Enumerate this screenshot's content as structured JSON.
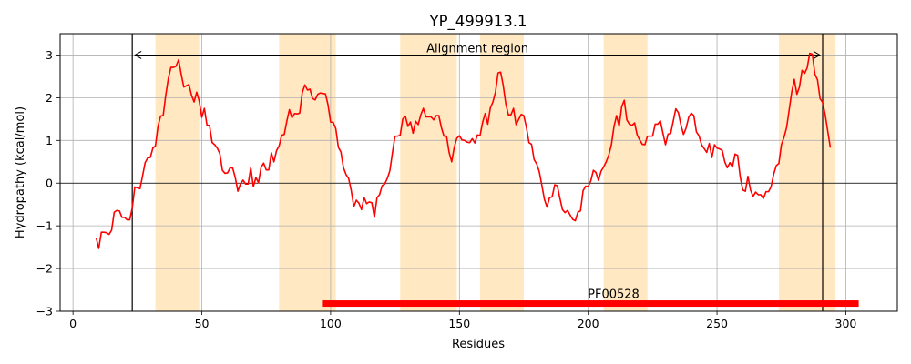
{
  "chart_data": {
    "type": "line",
    "title": "YP_499913.1",
    "xlabel": "Residues",
    "ylabel": "Hydropathy (kcal/mol)",
    "xlim": [
      -5,
      320
    ],
    "ylim": [
      -3,
      3.5
    ],
    "xticks": [
      0,
      50,
      100,
      150,
      200,
      250,
      300
    ],
    "yticks": [
      -3,
      -2,
      -1,
      0,
      1,
      2,
      3
    ],
    "x_tick_labels": [
      "0",
      "50",
      "100",
      "150",
      "200",
      "250",
      "300"
    ],
    "y_tick_labels": [
      "−3",
      "−2",
      "−1",
      "0",
      "1",
      "2",
      "3"
    ],
    "grid": true,
    "series": [
      {
        "color": "#ff0000",
        "x": [
          9,
          10,
          11,
          12,
          13,
          14,
          15,
          16,
          17,
          18,
          19,
          20,
          21,
          22,
          23,
          24,
          25,
          26,
          27,
          28,
          29,
          30,
          31,
          32,
          33,
          34,
          35,
          36,
          37,
          38,
          39,
          40,
          41,
          42,
          43,
          44,
          45,
          46,
          47,
          48,
          49,
          50,
          51,
          52,
          53,
          54,
          55,
          56,
          57,
          58,
          59,
          60,
          61,
          62,
          63,
          64,
          65,
          66,
          67,
          68,
          69,
          70,
          71,
          72,
          73,
          74,
          75,
          76,
          77,
          78,
          79,
          80,
          81,
          82,
          83,
          84,
          85,
          86,
          87,
          88,
          89,
          90,
          91,
          92,
          93,
          94,
          95,
          96,
          97,
          98,
          99,
          100,
          101,
          102,
          103,
          104,
          105,
          106,
          107,
          108,
          109,
          110,
          111,
          112,
          113,
          114,
          115,
          116,
          117,
          118,
          119,
          120,
          121,
          122,
          123,
          124,
          125,
          126,
          127,
          128,
          129,
          130,
          131,
          132,
          133,
          134,
          135,
          136,
          137,
          138,
          139,
          140,
          141,
          142,
          143,
          144,
          145,
          146,
          147,
          148,
          149,
          150,
          151,
          152,
          153,
          154,
          155,
          156,
          157,
          158,
          159,
          160,
          161,
          162,
          163,
          164,
          165,
          166,
          167,
          168,
          169,
          170,
          171,
          172,
          173,
          174,
          175,
          176,
          177,
          178,
          179,
          180,
          181,
          182,
          183,
          184,
          185,
          186,
          187,
          188,
          189,
          190,
          191,
          192,
          193,
          194,
          195,
          196,
          197,
          198,
          199,
          200,
          201,
          202,
          203,
          204,
          205,
          206,
          207,
          208,
          209,
          210,
          211,
          212,
          213,
          214,
          215,
          216,
          217,
          218,
          219,
          220,
          221,
          222,
          223,
          224,
          225,
          226,
          227,
          228,
          229,
          230,
          231,
          232,
          233,
          234,
          235,
          236,
          237,
          238,
          239,
          240,
          241,
          242,
          243,
          244,
          245,
          246,
          247,
          248,
          249,
          250,
          251,
          252,
          253,
          254,
          255,
          256,
          257,
          258,
          259,
          260,
          261,
          262,
          263,
          264,
          265,
          266,
          267,
          268,
          269,
          270,
          271,
          272,
          273,
          274,
          275,
          276,
          277,
          278,
          279,
          280,
          281,
          282,
          283,
          284,
          285,
          286,
          287,
          288,
          289,
          290,
          291,
          292,
          293,
          294
        ],
        "y": [
          -1.28,
          -1.53,
          -1.15,
          -1.15,
          -1.16,
          -1.2,
          -1.1,
          -0.68,
          -0.64,
          -0.65,
          -0.8,
          -0.8,
          -0.86,
          -0.86,
          -0.58,
          -0.09,
          -0.11,
          -0.13,
          0.17,
          0.48,
          0.59,
          0.6,
          0.82,
          0.87,
          1.33,
          1.57,
          1.58,
          2.06,
          2.45,
          2.71,
          2.71,
          2.74,
          2.89,
          2.55,
          2.25,
          2.28,
          2.31,
          2.06,
          1.9,
          2.13,
          1.92,
          1.54,
          1.75,
          1.36,
          1.35,
          0.95,
          0.9,
          0.82,
          0.69,
          0.3,
          0.23,
          0.24,
          0.36,
          0.35,
          0.13,
          -0.19,
          -0.02,
          0.07,
          -0.02,
          -0.02,
          0.36,
          -0.08,
          0.13,
          0.01,
          0.37,
          0.47,
          0.31,
          0.31,
          0.71,
          0.5,
          0.76,
          0.87,
          1.12,
          1.14,
          1.45,
          1.72,
          1.53,
          1.63,
          1.62,
          1.64,
          2.12,
          2.3,
          2.18,
          2.2,
          1.98,
          1.95,
          2.08,
          2.11,
          2.1,
          2.09,
          1.83,
          1.43,
          1.42,
          1.28,
          0.84,
          0.73,
          0.36,
          0.2,
          0.11,
          -0.17,
          -0.55,
          -0.4,
          -0.47,
          -0.62,
          -0.34,
          -0.48,
          -0.44,
          -0.46,
          -0.8,
          -0.34,
          -0.27,
          -0.06,
          -0.02,
          0.11,
          0.29,
          0.71,
          1.1,
          1.1,
          1.12,
          1.5,
          1.57,
          1.33,
          1.43,
          1.17,
          1.45,
          1.37,
          1.6,
          1.75,
          1.55,
          1.55,
          1.55,
          1.48,
          1.58,
          1.58,
          1.3,
          1.1,
          1.1,
          0.72,
          0.5,
          0.84,
          1.05,
          1.11,
          1.01,
          1.0,
          0.96,
          0.95,
          1.04,
          0.94,
          1.13,
          1.11,
          1.42,
          1.63,
          1.38,
          1.76,
          1.9,
          2.13,
          2.58,
          2.6,
          2.29,
          1.86,
          1.6,
          1.6,
          1.75,
          1.37,
          1.49,
          1.61,
          1.58,
          1.31,
          0.95,
          0.91,
          0.55,
          0.45,
          0.27,
          -0.05,
          -0.38,
          -0.56,
          -0.34,
          -0.32,
          -0.04,
          -0.06,
          -0.35,
          -0.62,
          -0.69,
          -0.64,
          -0.75,
          -0.85,
          -0.88,
          -0.68,
          -0.65,
          -0.18,
          -0.07,
          -0.08,
          0.05,
          0.3,
          0.25,
          0.06,
          0.28,
          0.38,
          0.5,
          0.66,
          0.9,
          1.32,
          1.58,
          1.33,
          1.79,
          1.94,
          1.48,
          1.38,
          1.35,
          1.41,
          1.13,
          1.01,
          0.91,
          0.9,
          1.1,
          1.1,
          1.1,
          1.38,
          1.38,
          1.46,
          1.17,
          0.9,
          1.15,
          1.16,
          1.45,
          1.74,
          1.65,
          1.36,
          1.14,
          1.29,
          1.54,
          1.64,
          1.58,
          1.2,
          1.11,
          0.9,
          0.81,
          0.72,
          0.93,
          0.6,
          0.9,
          0.82,
          0.8,
          0.77,
          0.5,
          0.36,
          0.48,
          0.38,
          0.68,
          0.65,
          0.15,
          -0.16,
          -0.19,
          0.16,
          -0.16,
          -0.31,
          -0.21,
          -0.27,
          -0.27,
          -0.36,
          -0.2,
          -0.2,
          -0.08,
          0.21,
          0.41,
          0.46,
          0.9,
          1.07,
          1.3,
          1.71,
          2.13,
          2.43,
          2.08,
          2.25,
          2.64,
          2.57,
          2.7,
          3.04,
          3.02,
          2.55,
          2.42,
          1.98,
          1.89,
          1.6,
          1.21,
          0.83
        ]
      }
    ],
    "shaded_regions": [
      {
        "from": 32,
        "to": 49,
        "color": "#ffe8c2"
      },
      {
        "from": 80,
        "to": 102,
        "color": "#ffe8c2"
      },
      {
        "from": 127,
        "to": 149,
        "color": "#ffe8c2"
      },
      {
        "from": 158,
        "to": 175,
        "color": "#ffe8c2"
      },
      {
        "from": 206,
        "to": 223,
        "color": "#ffe8c2"
      },
      {
        "from": 274,
        "to": 296,
        "color": "#ffe8c2"
      }
    ],
    "vertical_lines": [
      23,
      291
    ],
    "alignment": {
      "from": 23,
      "to": 291,
      "y": 3.0,
      "label": "Alignment region"
    },
    "domain_bar": {
      "from": 97,
      "to": 305,
      "y": -2.82,
      "label": "PF00528",
      "color": "#ff0000"
    }
  }
}
